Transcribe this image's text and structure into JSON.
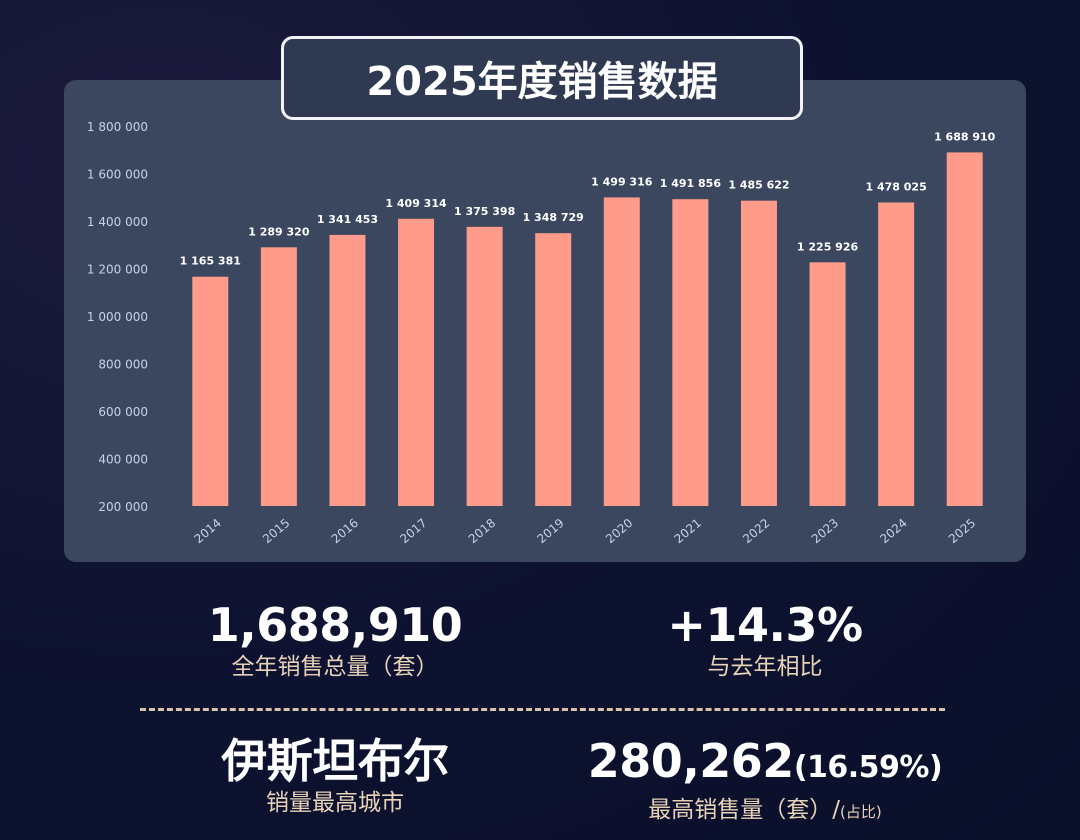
{
  "title": "2025年度销售数据",
  "chart_data": {
    "type": "bar",
    "categories": [
      "2014",
      "2015",
      "2016",
      "2017",
      "2018",
      "2019",
      "2020",
      "2021",
      "2022",
      "2023",
      "2024",
      "2025"
    ],
    "values": [
      1165381,
      1289320,
      1341453,
      1409314,
      1375398,
      1348729,
      1499316,
      1491856,
      1485622,
      1225926,
      1478025,
      1688910
    ],
    "data_labels": [
      "1 165 381",
      "1 289 320",
      "1 341 453",
      "1 409 314",
      "1 375 398",
      "1 348 729",
      "1 499 316",
      "1 491 856",
      "1 485 622",
      "1 225 926",
      "1 478 025",
      "1 688 910"
    ],
    "yticks": [
      200000,
      400000,
      600000,
      800000,
      1000000,
      1200000,
      1400000,
      1600000,
      1800000
    ],
    "ytick_labels": [
      "200 000",
      "400 000",
      "600 000",
      "800 000",
      "1 000 000",
      "1 200 000",
      "1 400 000",
      "1 600 000",
      "1 800 000"
    ],
    "ylim": [
      200000,
      1800000
    ],
    "grid": false,
    "bar_color": "#ff9b8a"
  },
  "stats": {
    "total_value": "1,688,910",
    "total_label": "全年销售总量（套）",
    "growth_value": "+14.3%",
    "growth_label": "与去年相比",
    "city_value": "伊斯坦布尔",
    "city_label": "销量最高城市",
    "max_value": "280,262",
    "max_pct": "(16.59%)",
    "max_label": "最高销售量（套）/",
    "max_label_small": "(占比)"
  },
  "colors": {
    "background": "#0d1230",
    "panel": "#3b475f",
    "accent_text": "#e8d2b8"
  }
}
